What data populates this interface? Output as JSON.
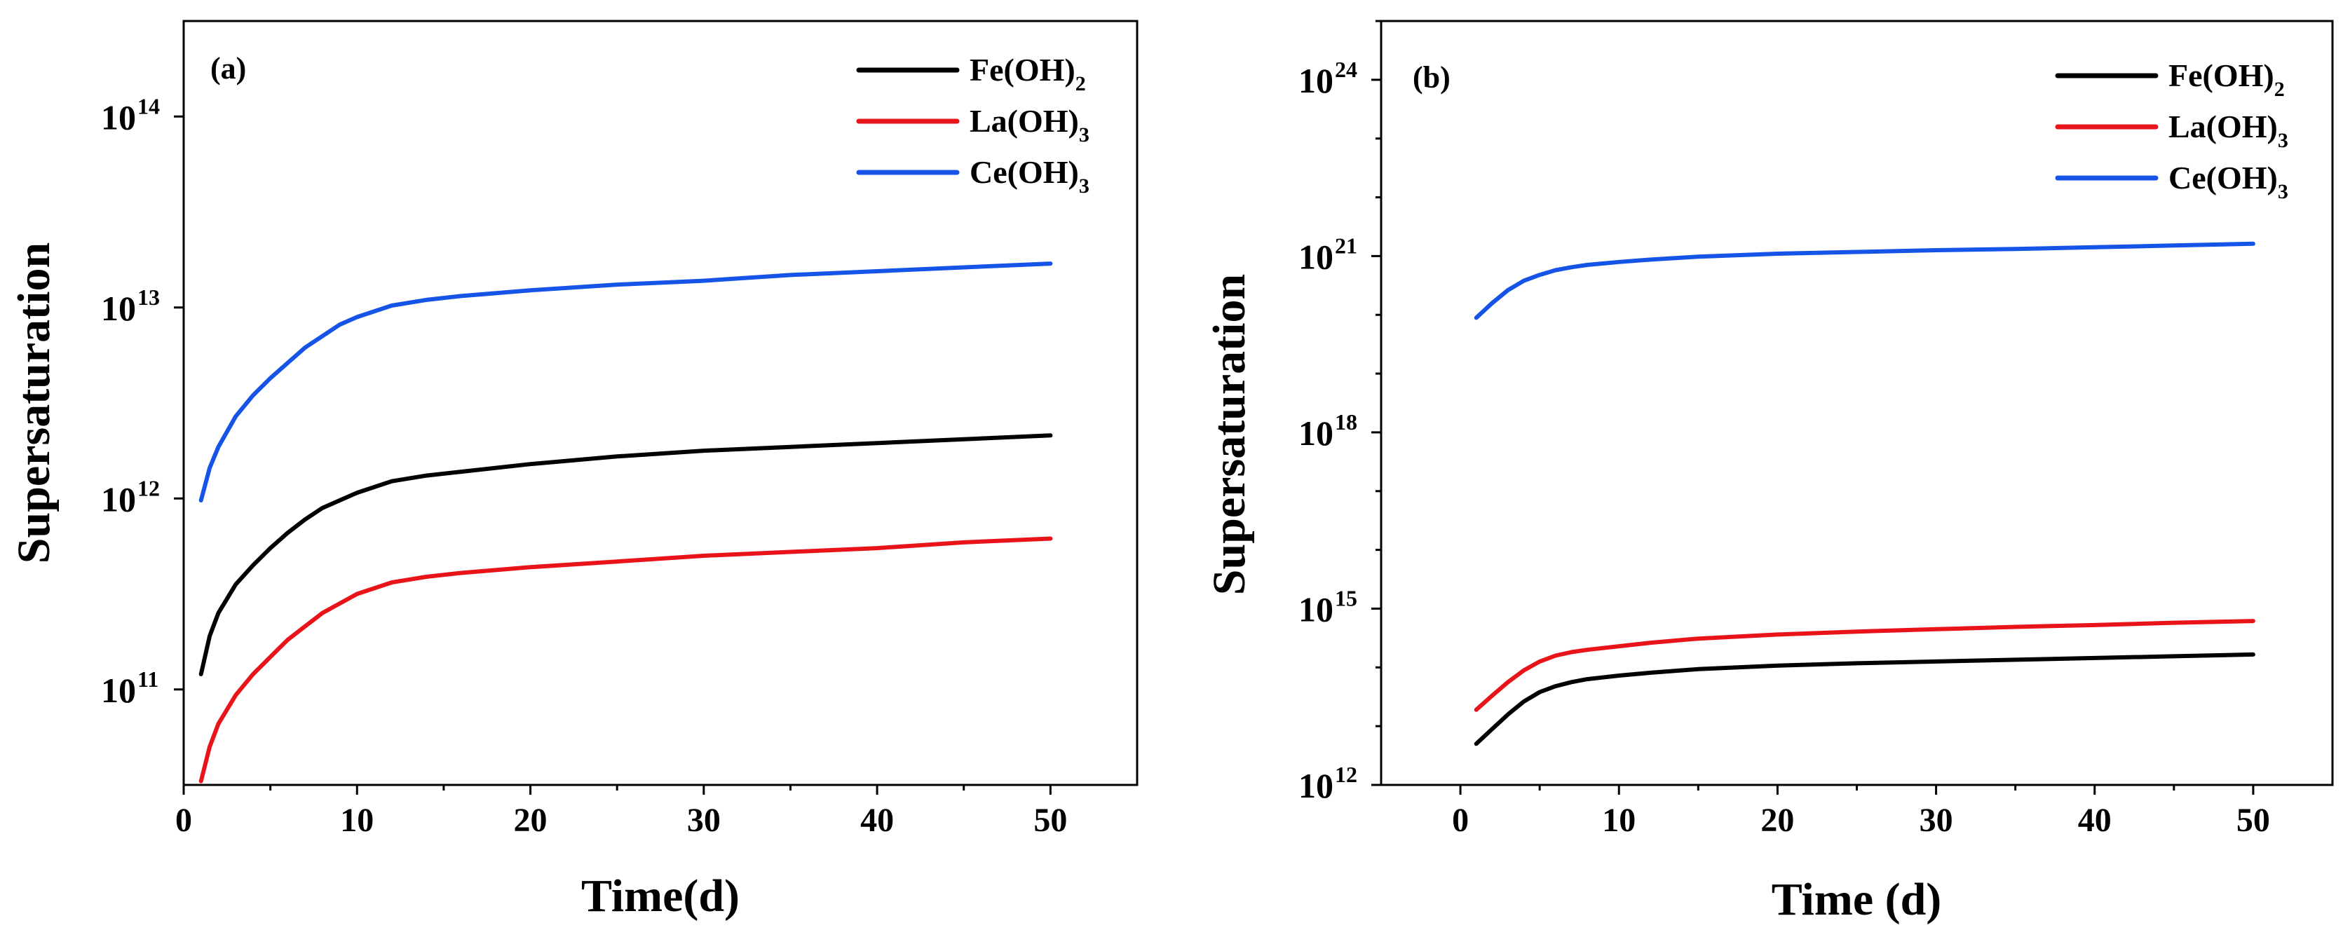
{
  "chart_data": [
    {
      "type": "line",
      "panel_label": "(a)",
      "xlabel": "Time(d)",
      "ylabel": "Supersaturation",
      "yscale": "log",
      "xlim": [
        0,
        55
      ],
      "ylim_log10": [
        10.5,
        14.5
      ],
      "xticks": [
        0,
        10,
        20,
        30,
        40,
        50
      ],
      "xtick_labels": [
        "0",
        "10",
        "20",
        "30",
        "40",
        "50"
      ],
      "yticks": [
        {
          "base": "10",
          "exp": "11",
          "value": 11
        },
        {
          "base": "10",
          "exp": "12",
          "value": 12
        },
        {
          "base": "10",
          "exp": "13",
          "value": 13
        },
        {
          "base": "10",
          "exp": "14",
          "value": 14
        }
      ],
      "legend_position": "top-right",
      "x": [
        1,
        1.5,
        2,
        3,
        4,
        5,
        6,
        7,
        8,
        9,
        10,
        12,
        14,
        16,
        20,
        25,
        30,
        35,
        40,
        45,
        50
      ],
      "series": [
        {
          "name": "Fe(OH)",
          "subscript": "2",
          "color": "#000000",
          "log10_values": [
            11.08,
            11.28,
            11.4,
            11.55,
            11.65,
            11.74,
            11.82,
            11.89,
            11.95,
            11.99,
            12.03,
            12.09,
            12.12,
            12.14,
            12.18,
            12.22,
            12.25,
            12.27,
            12.29,
            12.31,
            12.33
          ]
        },
        {
          "name": "La(OH)",
          "subscript": "3",
          "color": "#e8141a",
          "log10_values": [
            10.52,
            10.7,
            10.82,
            10.97,
            11.08,
            11.17,
            11.26,
            11.33,
            11.4,
            11.45,
            11.5,
            11.56,
            11.59,
            11.61,
            11.64,
            11.67,
            11.7,
            11.72,
            11.74,
            11.77,
            11.79
          ]
        },
        {
          "name": "Ce(OH)",
          "subscript": "3",
          "color": "#1554e6",
          "log10_values": [
            11.99,
            12.16,
            12.27,
            12.43,
            12.54,
            12.63,
            12.71,
            12.79,
            12.85,
            12.91,
            12.95,
            13.01,
            13.04,
            13.06,
            13.09,
            13.12,
            13.14,
            13.17,
            13.19,
            13.21,
            13.23
          ]
        }
      ]
    },
    {
      "type": "line",
      "panel_label": "(b)",
      "xlabel": "Time (d)",
      "ylabel": "Supersaturation",
      "yscale": "log",
      "xlim": [
        -5,
        55
      ],
      "ylim_log10": [
        12,
        25
      ],
      "xticks": [
        0,
        10,
        20,
        30,
        40,
        50
      ],
      "xtick_labels": [
        "0",
        "10",
        "20",
        "30",
        "40",
        "50"
      ],
      "yticks": [
        {
          "base": "10",
          "exp": "12",
          "value": 12
        },
        {
          "base": "10",
          "exp": "15",
          "value": 15
        },
        {
          "base": "10",
          "exp": "18",
          "value": 18
        },
        {
          "base": "10",
          "exp": "21",
          "value": 21
        },
        {
          "base": "10",
          "exp": "24",
          "value": 24
        }
      ],
      "legend_position": "top-right",
      "x": [
        1,
        2,
        3,
        4,
        5,
        6,
        7,
        8,
        10,
        12,
        15,
        20,
        25,
        30,
        35,
        40,
        45,
        50
      ],
      "series": [
        {
          "name": "Fe(OH)",
          "subscript": "2",
          "color": "#000000",
          "log10_values": [
            12.7,
            12.95,
            13.2,
            13.42,
            13.58,
            13.68,
            13.75,
            13.8,
            13.86,
            13.91,
            13.97,
            14.03,
            14.07,
            14.1,
            14.13,
            14.16,
            14.19,
            14.22
          ]
        },
        {
          "name": "La(OH)",
          "subscript": "3",
          "color": "#e8141a",
          "log10_values": [
            13.28,
            13.52,
            13.75,
            13.95,
            14.1,
            14.2,
            14.26,
            14.3,
            14.36,
            14.42,
            14.49,
            14.56,
            14.61,
            14.65,
            14.69,
            14.72,
            14.76,
            14.79
          ]
        },
        {
          "name": "Ce(OH)",
          "subscript": "3",
          "color": "#1554e6",
          "log10_values": [
            19.95,
            20.2,
            20.42,
            20.58,
            20.68,
            20.76,
            20.81,
            20.85,
            20.9,
            20.94,
            20.99,
            21.04,
            21.07,
            21.1,
            21.12,
            21.15,
            21.18,
            21.21
          ]
        }
      ]
    }
  ]
}
